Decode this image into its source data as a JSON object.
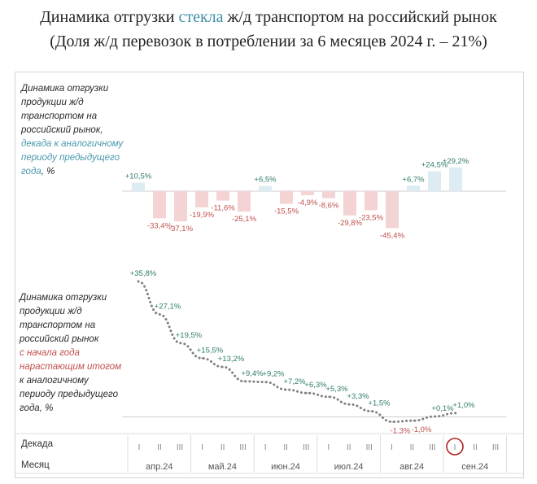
{
  "title": {
    "line1_prefix": "Динамика отгрузки ",
    "line1_accent": "стекла",
    "line1_suffix": " ж/д транспортом на российский рынок",
    "line2": "(Доля ж/д перевозок в потреблении за 6 месяцев 2024 г. – 21%)"
  },
  "desc_top": {
    "part1": "Динамика отгрузки\nпродукции ж/д\nтранспортом на\nроссийский рынок,\n",
    "part2": "декада к аналогичному\nпериоду предыдущего\nгода",
    "part3": ", %"
  },
  "desc_bottom": {
    "part1": "Динамика отгрузки\nпродукции ж/д\nтранспортом на\nроссийский рынок\n",
    "part2": "с начала года\nнарастающим итогом",
    "part3": "\nк аналогичному\nпериоду предыдущего\nгода, %"
  },
  "axis_rows": {
    "decade_label": "Декада",
    "month_label": "Месяц"
  },
  "colors": {
    "positive_bar": "#dcecf2",
    "negative_bar": "#f3d3d3",
    "positive_text": "#2e7d6b",
    "negative_text": "#c0504d",
    "line": "#808080",
    "highlight": "#b22222"
  },
  "chart_data": [
    {
      "type": "bar",
      "categories": [
        "апр.I",
        "апр.II",
        "апр.III",
        "май.I",
        "май.II",
        "май.III",
        "июн.I",
        "июн.II",
        "июн.III",
        "июл.I",
        "июл.II",
        "июл.III",
        "авг.I",
        "авг.II",
        "авг.III",
        "сен.I"
      ],
      "values": [
        10.5,
        -33.4,
        -37.1,
        -19.9,
        -11.6,
        -25.1,
        6.5,
        -15.5,
        -4.9,
        -8.6,
        -29.8,
        -23.5,
        -45.4,
        6.7,
        24.5,
        29.2
      ],
      "labels": [
        "+10,5%",
        "-33,4%",
        "-37,1%",
        "-19,9%",
        "-11,6%",
        "-25,1%",
        "+6,5%",
        "-15,5%",
        "-4,9%",
        "-8,6%",
        "-29,8%",
        "-23,5%",
        "-45,4%",
        "+6,7%",
        "+24,5%",
        "+29,2%"
      ]
    },
    {
      "type": "line",
      "categories": [
        "апр.I",
        "апр.II",
        "апр.III",
        "май.I",
        "май.II",
        "май.III",
        "июн.I",
        "июн.II",
        "июн.III",
        "июл.I",
        "июл.II",
        "июл.III",
        "авг.I",
        "авг.II",
        "авг.III",
        "сен.I"
      ],
      "values": [
        35.8,
        27.1,
        19.5,
        15.5,
        13.2,
        9.4,
        9.2,
        7.2,
        6.3,
        5.3,
        3.3,
        1.5,
        -1.3,
        -1.0,
        0.1,
        1.0
      ],
      "labels": [
        "+35,8%",
        "+27,1%",
        "+19,5%",
        "+15,5%",
        "+13,2%",
        "+9,4%",
        "+9,2%",
        "+7,2%",
        "+6,3%",
        "+5,3%",
        "+3,3%",
        "+1,5%",
        "-1,3%",
        "-1,0%",
        "+0,1%",
        "+1,0%"
      ]
    }
  ],
  "months": [
    "апр.24",
    "май.24",
    "июн.24",
    "июл.24",
    "авг.24",
    "сен.24"
  ],
  "decades": [
    "I",
    "II",
    "III"
  ],
  "highlight_decade": "сен.I"
}
